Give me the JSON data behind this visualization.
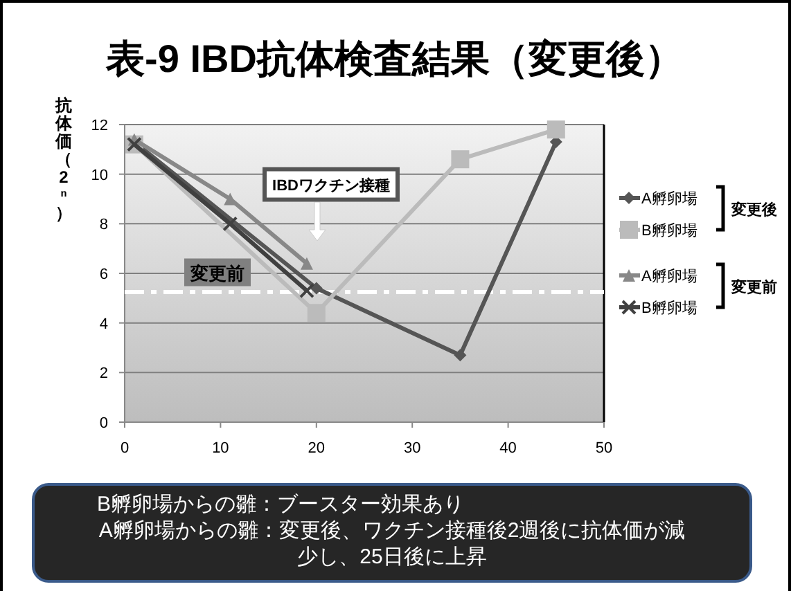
{
  "chart_data": {
    "type": "line",
    "title": "表-9 IBD抗体検査結果（変更後）",
    "ylabel": "抗体価（2ⁿ）",
    "xlim": [
      0,
      50
    ],
    "xticks": [
      0,
      10,
      20,
      30,
      40,
      50
    ],
    "ylim": [
      0,
      12
    ],
    "yticks": [
      0,
      2,
      4,
      6,
      8,
      10,
      12
    ],
    "grid": "y",
    "legend": "right",
    "series": [
      {
        "name": "A孵卵場",
        "color": "#555555",
        "marker": "diamond",
        "x": [
          1,
          20,
          35,
          45
        ],
        "values": [
          11.3,
          5.4,
          2.7,
          11.3
        ]
      },
      {
        "name": "B孵卵場",
        "color": "#bbbbbb",
        "marker": "square",
        "x": [
          1,
          20,
          35,
          45
        ],
        "values": [
          11.2,
          4.4,
          10.6,
          11.8
        ]
      },
      {
        "name": "A孵卵場",
        "color": "#888888",
        "marker": "triangle",
        "x": [
          1,
          11,
          19
        ],
        "values": [
          11.4,
          9.0,
          6.4
        ]
      },
      {
        "name": "B孵卵場",
        "color": "#404040",
        "marker": "cross",
        "x": [
          1,
          11,
          19
        ],
        "values": [
          11.2,
          8.0,
          5.3
        ]
      }
    ],
    "ref_lines": [
      {
        "axis": "y",
        "value": 5.25,
        "label": "変更前",
        "color": "#ffffff",
        "line_style": "dashed"
      }
    ],
    "annotations": [
      "IBDワクチン接種",
      "変更後",
      "変更前",
      "B孵卵場からの雛：ブースター効果あり",
      "A孵卵場からの雛：変更後、ワクチン接種後2週後に抗体価が減少し、25日後に上昇"
    ]
  }
}
